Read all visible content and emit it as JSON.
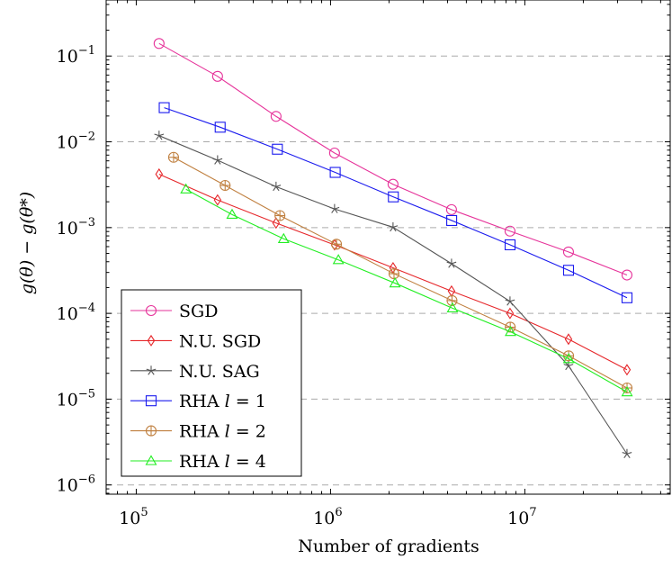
{
  "chart_data": {
    "type": "line",
    "title": "",
    "xlabel": "Number of gradients",
    "ylabel": "g(θ) − g(θ*)",
    "xscale": "log",
    "yscale": "log",
    "xlim": [
      70000,
      56000000
    ],
    "ylim": [
      7.8e-07,
      0.45
    ],
    "x_ticks": [
      {
        "value": 100000,
        "base": "10",
        "exp": "5"
      },
      {
        "value": 1000000,
        "base": "10",
        "exp": "6"
      },
      {
        "value": 10000000,
        "base": "10",
        "exp": "7"
      }
    ],
    "y_ticks": [
      {
        "value": 0.1,
        "base": "10",
        "exp": "−1"
      },
      {
        "value": 0.01,
        "base": "10",
        "exp": "−2"
      },
      {
        "value": 0.001,
        "base": "10",
        "exp": "−3"
      },
      {
        "value": 0.0001,
        "base": "10",
        "exp": "−4"
      },
      {
        "value": 1e-05,
        "base": "10",
        "exp": "−5"
      },
      {
        "value": 1e-06,
        "base": "10",
        "exp": "−6"
      }
    ],
    "grid": "horizontal dashed at major y ticks",
    "legend_position": "bottom-left",
    "series": [
      {
        "name": "SGD",
        "color": "#e6339a",
        "marker": "circle",
        "x": [
          131072,
          262144,
          524288,
          1048576,
          2097152,
          4194304,
          8388608,
          16777216,
          33554432
        ],
        "y": [
          0.14,
          0.058,
          0.0198,
          0.0074,
          0.0032,
          0.00162,
          0.00091,
          0.00052,
          0.00028
        ]
      },
      {
        "name": "N.U. SGD",
        "color": "#e6262a",
        "marker": "diamond",
        "x": [
          131072,
          262144,
          524288,
          1048576,
          2097152,
          4194304,
          8388608,
          16777216,
          33554432
        ],
        "y": [
          0.0042,
          0.0021,
          0.00113,
          0.00063,
          0.00034,
          0.000182,
          0.0001,
          5e-05,
          2.2e-05
        ]
      },
      {
        "name": "N.U. SAG",
        "color": "#555555",
        "marker": "star",
        "x": [
          131072,
          262144,
          524288,
          1048576,
          2097152,
          4194304,
          8388608,
          16777216,
          33554432
        ],
        "y": [
          0.0118,
          0.0061,
          0.003,
          0.00165,
          0.00101,
          0.00038,
          0.000138,
          2.45e-05,
          2.3e-06
        ]
      },
      {
        "name": "RHA",
        "l": "1",
        "color": "#1a1aee",
        "marker": "square",
        "x": [
          139264,
          270336,
          532480,
          1056768,
          2105344,
          4202496,
          8396800,
          16785408,
          33562624
        ],
        "y": [
          0.025,
          0.0148,
          0.0082,
          0.0044,
          0.00228,
          0.00121,
          0.00063,
          0.000318,
          0.000152
        ]
      },
      {
        "name": "RHA",
        "l": "2",
        "color": "#c08040",
        "marker": "circle-plus",
        "x": [
          155648,
          286720,
          548864,
          1073152,
          2121728,
          4218880,
          8413184,
          16801792,
          33579008
        ],
        "y": [
          0.0066,
          0.0031,
          0.00138,
          0.00064,
          0.00029,
          0.000141,
          6.9e-05,
          3.2e-05,
          1.35e-05
        ]
      },
      {
        "name": "RHA",
        "l": "4",
        "color": "#22ee22",
        "marker": "triangle",
        "x": [
          180224,
          311296,
          573440,
          1097728,
          2146304,
          4243456,
          8437760,
          16826368,
          33603584
        ],
        "y": [
          0.0028,
          0.00142,
          0.00074,
          0.00042,
          0.000225,
          0.000115,
          6.1e-05,
          2.95e-05,
          1.21e-05
        ]
      }
    ]
  }
}
